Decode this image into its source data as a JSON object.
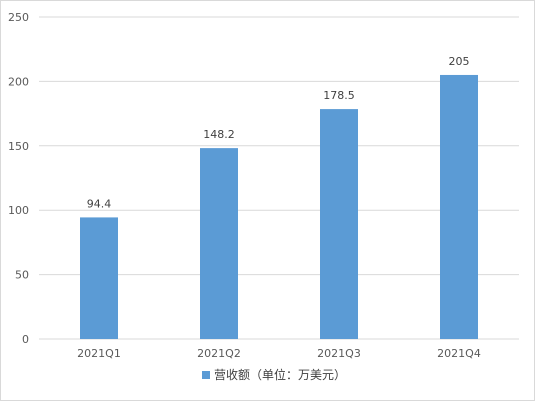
{
  "chart_data": {
    "type": "bar",
    "categories": [
      "2021Q1",
      "2021Q2",
      "2021Q3",
      "2021Q4"
    ],
    "series": [
      {
        "name": "营收额（单位：万美元）",
        "values": [
          94.4,
          148.2,
          178.5,
          205
        ],
        "data_labels": [
          "94.4",
          "148.2",
          "178.5",
          "205"
        ]
      }
    ],
    "y_ticks": [
      0,
      50,
      100,
      150,
      200,
      250
    ],
    "y_tick_labels": [
      "0",
      "50",
      "100",
      "150",
      "200",
      "250"
    ],
    "ylim": [
      0,
      250
    ],
    "grid": true,
    "legend_position": "bottom",
    "colors": {
      "bar": "#5b9bd5",
      "grid": "#d9d9d9",
      "axis_text": "#595959"
    }
  }
}
